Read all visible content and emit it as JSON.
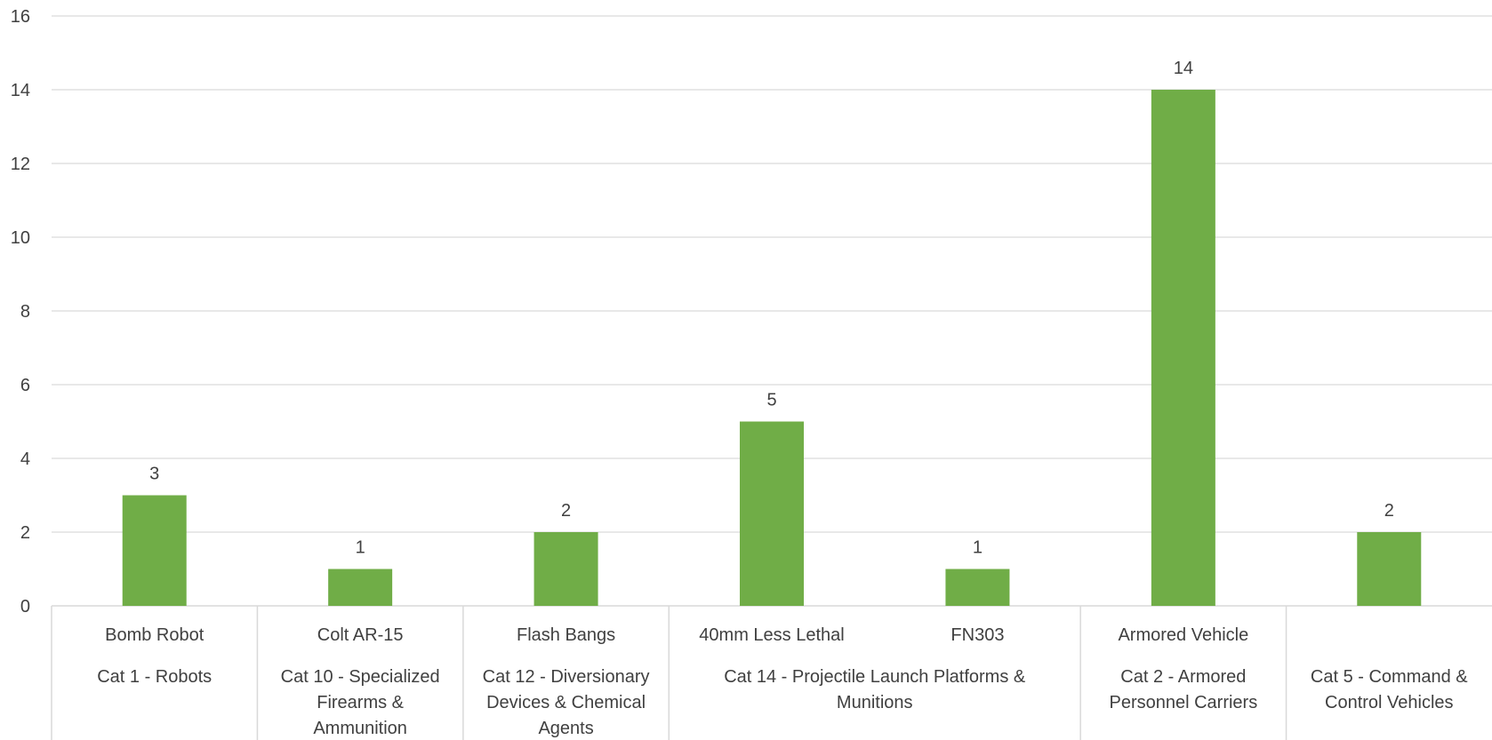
{
  "chart_data": {
    "type": "bar",
    "y_axis": {
      "ylim": [
        0,
        16
      ],
      "ticks": [
        "0",
        "2",
        "4",
        "6",
        "8",
        "10",
        "12",
        "14",
        "16"
      ]
    },
    "grid": true,
    "legend": "none",
    "categories": [
      "Bomb Robot",
      "Colt AR-15",
      "Flash Bangs",
      "40mm Less Lethal",
      "FN303",
      "Armored Vehicle",
      ""
    ],
    "values": [
      3,
      1,
      2,
      5,
      1,
      14,
      2
    ],
    "data_labels": [
      "3",
      "1",
      "2",
      "5",
      "1",
      "14",
      "2"
    ],
    "groups": [
      {
        "label_lines": [
          "Cat 1 - Robots"
        ],
        "items": 1
      },
      {
        "label_lines": [
          "Cat 10 - Specialized",
          "Firearms &",
          "Ammunition"
        ],
        "items": 1
      },
      {
        "label_lines": [
          "Cat 12 - Diversionary",
          "Devices & Chemical",
          "Agents"
        ],
        "items": 1
      },
      {
        "label_lines": [
          "Cat 14 - Projectile Launch Platforms &",
          "Munitions"
        ],
        "items": 2
      },
      {
        "label_lines": [
          "Cat 2 - Armored",
          "Personnel Carriers"
        ],
        "items": 1
      },
      {
        "label_lines": [
          "Cat 5 - Command &",
          "Control Vehicles"
        ],
        "items": 1
      }
    ],
    "colors": {
      "bar": "#70AD47",
      "grid": "#D9D9D9",
      "text": "#404040",
      "axis": "#D9D9D9"
    }
  }
}
